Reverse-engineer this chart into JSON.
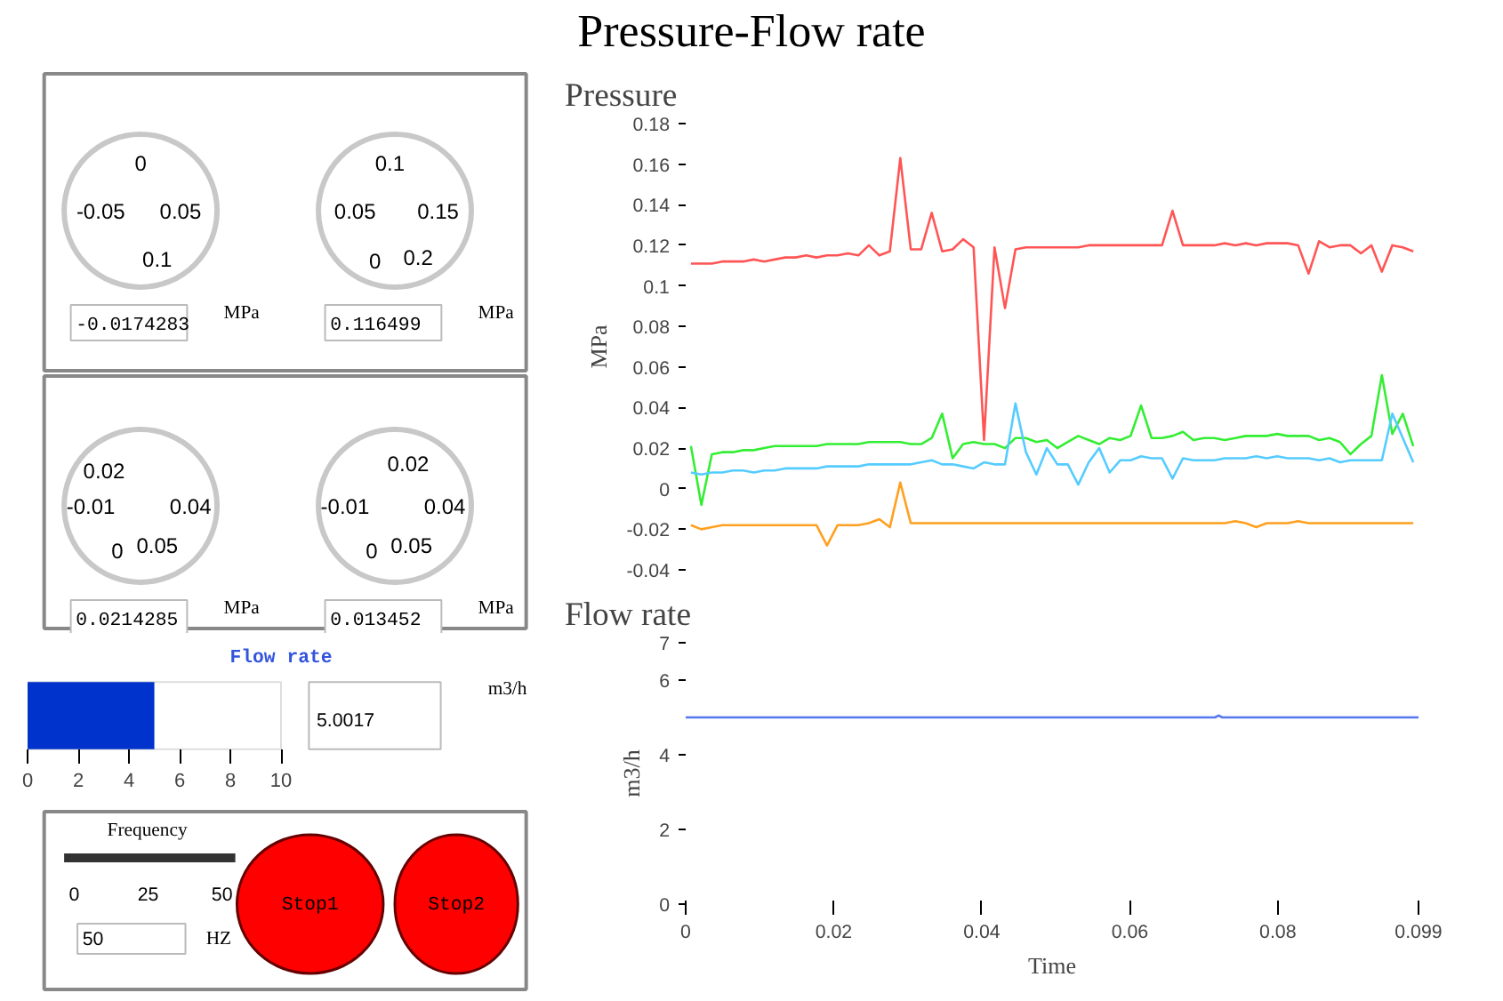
{
  "chart_data": [
    {
      "type": "other",
      "title": "Pressure-Flow rate",
      "annotations": [
        "0",
        "-0.05",
        "0.05",
        "0.1",
        "-0.0174283",
        "MPa",
        "0.1",
        "0.05",
        "0.15",
        "0",
        "0.2",
        "0.116499",
        "MPa",
        "0.02",
        "-0.01",
        "0.04",
        "0",
        "0.05",
        "0.0214285",
        "MPa",
        "0.02",
        "-0.01",
        "0.04",
        "0",
        "0.05",
        "0.013452",
        "MPa"
      ]
    },
    {
      "type": "bar",
      "orientation": "horizontal",
      "title": "Flow rate",
      "categories": [
        null
      ],
      "values": [
        5.0017
      ],
      "color": "#0033cc",
      "xlim": [
        0,
        10
      ],
      "xticks": [
        0,
        2,
        4,
        6,
        8,
        10
      ],
      "annotations": [
        "5.0017",
        "m3/h"
      ]
    },
    {
      "type": "other",
      "colors": [
        "#ff0000"
      ],
      "annotations": [
        "Frequency",
        "0",
        "25",
        "50",
        "50",
        "HZ",
        "Stop1",
        "Stop2"
      ]
    },
    {
      "type": "line",
      "title": "Pressure",
      "ylabel": "MPa",
      "tick_labels": "y",
      "ylim": [
        -0.04,
        0.18
      ],
      "yticks": [
        -0.04,
        -0.02,
        0,
        0.02,
        0.04,
        0.06,
        0.08,
        0.1,
        0.12,
        0.14,
        0.16,
        0.18
      ],
      "categories": [
        null,
        null,
        null,
        null,
        null,
        null,
        null,
        null,
        null,
        null,
        null,
        null,
        null,
        null,
        null,
        null,
        null,
        null,
        null,
        null,
        null,
        null,
        null,
        null,
        null,
        null,
        null,
        null,
        null,
        null,
        null,
        null,
        null,
        null,
        null,
        null,
        null,
        null,
        null,
        null,
        null,
        null,
        null,
        null,
        null,
        null,
        null,
        null,
        null,
        null,
        null,
        null,
        null,
        null,
        null,
        null,
        null,
        null,
        null,
        null,
        null,
        null,
        null,
        null,
        null,
        null,
        null,
        null,
        null,
        null
      ],
      "series": [
        {
          "color": "#ff5555",
          "values": [
            0.111,
            0.111,
            0.111,
            0.112,
            0.112,
            0.112,
            0.113,
            0.112,
            0.113,
            0.114,
            0.114,
            0.115,
            0.114,
            0.115,
            0.115,
            0.116,
            0.115,
            0.12,
            0.115,
            0.117,
            0.163,
            0.118,
            0.118,
            0.136,
            0.117,
            0.118,
            0.123,
            0.119,
            0.024,
            0.119,
            0.089,
            0.118,
            0.119,
            0.119,
            0.119,
            0.119,
            0.119,
            0.119,
            0.12,
            0.12,
            0.12,
            0.12,
            0.12,
            0.12,
            0.12,
            0.12,
            0.137,
            0.12,
            0.12,
            0.12,
            0.12,
            0.121,
            0.12,
            0.121,
            0.12,
            0.121,
            0.121,
            0.121,
            0.12,
            0.106,
            0.122,
            0.119,
            0.12,
            0.12,
            0.116,
            0.12,
            0.107,
            0.12,
            0.119,
            0.117
          ]
        },
        {
          "color": "#33ee33",
          "values": [
            0.021,
            -0.008,
            0.017,
            0.018,
            0.018,
            0.019,
            0.019,
            0.02,
            0.021,
            0.021,
            0.021,
            0.021,
            0.021,
            0.022,
            0.022,
            0.022,
            0.022,
            0.023,
            0.023,
            0.023,
            0.023,
            0.022,
            0.022,
            0.025,
            0.037,
            0.015,
            0.022,
            0.023,
            0.022,
            0.022,
            0.02,
            0.025,
            0.025,
            0.023,
            0.024,
            0.02,
            0.023,
            0.026,
            0.024,
            0.022,
            0.025,
            0.024,
            0.026,
            0.041,
            0.025,
            0.025,
            0.026,
            0.028,
            0.024,
            0.025,
            0.025,
            0.024,
            0.025,
            0.026,
            0.026,
            0.026,
            0.027,
            0.026,
            0.026,
            0.026,
            0.024,
            0.025,
            0.023,
            0.017,
            0.022,
            0.026,
            0.056,
            0.027,
            0.037,
            0.021
          ]
        },
        {
          "color": "#55ccff",
          "values": [
            0.008,
            0.007,
            0.008,
            0.008,
            0.009,
            0.009,
            0.008,
            0.009,
            0.009,
            0.01,
            0.01,
            0.01,
            0.01,
            0.011,
            0.011,
            0.011,
            0.011,
            0.012,
            0.012,
            0.012,
            0.012,
            0.012,
            0.013,
            0.014,
            0.012,
            0.012,
            0.011,
            0.01,
            0.013,
            0.012,
            0.012,
            0.042,
            0.018,
            0.007,
            0.02,
            0.012,
            0.012,
            0.002,
            0.013,
            0.02,
            0.008,
            0.014,
            0.014,
            0.016,
            0.015,
            0.015,
            0.005,
            0.015,
            0.014,
            0.014,
            0.014,
            0.015,
            0.015,
            0.015,
            0.016,
            0.015,
            0.016,
            0.015,
            0.015,
            0.015,
            0.014,
            0.015,
            0.013,
            0.014,
            0.014,
            0.014,
            0.014,
            0.037,
            0.025,
            0.013
          ]
        },
        {
          "color": "#ffa020",
          "values": [
            -0.018,
            -0.02,
            -0.019,
            -0.018,
            -0.018,
            -0.018,
            -0.018,
            -0.018,
            -0.018,
            -0.018,
            -0.018,
            -0.018,
            -0.018,
            -0.028,
            -0.018,
            -0.018,
            -0.018,
            -0.017,
            -0.015,
            -0.019,
            0.003,
            -0.017,
            -0.017,
            -0.017,
            -0.017,
            -0.017,
            -0.017,
            -0.017,
            -0.017,
            -0.017,
            -0.017,
            -0.017,
            -0.017,
            -0.017,
            -0.017,
            -0.017,
            -0.017,
            -0.017,
            -0.017,
            -0.017,
            -0.017,
            -0.017,
            -0.017,
            -0.017,
            -0.017,
            -0.017,
            -0.017,
            -0.017,
            -0.017,
            -0.017,
            -0.017,
            -0.017,
            -0.016,
            -0.017,
            -0.019,
            -0.017,
            -0.017,
            -0.017,
            -0.016,
            -0.017,
            -0.017,
            -0.017,
            -0.017,
            -0.017,
            -0.017,
            -0.017,
            -0.017,
            -0.017,
            -0.017,
            -0.017
          ]
        }
      ]
    },
    {
      "type": "line",
      "title": "Flow rate",
      "xlabel": "Time",
      "ylabel": "m3/h",
      "xlim": [
        0,
        0.099
      ],
      "xticks": [
        0,
        0.02,
        0.04,
        0.06,
        0.08,
        0.099
      ],
      "ylim": [
        0,
        7
      ],
      "yticks": [
        0,
        2,
        4,
        6,
        7
      ],
      "series": [
        {
          "color": "#5577ee",
          "x": [
            0,
            0.0715,
            0.072,
            0.0725,
            0.099
          ],
          "values": [
            5,
            5,
            5.05,
            5,
            5
          ]
        }
      ]
    }
  ]
}
